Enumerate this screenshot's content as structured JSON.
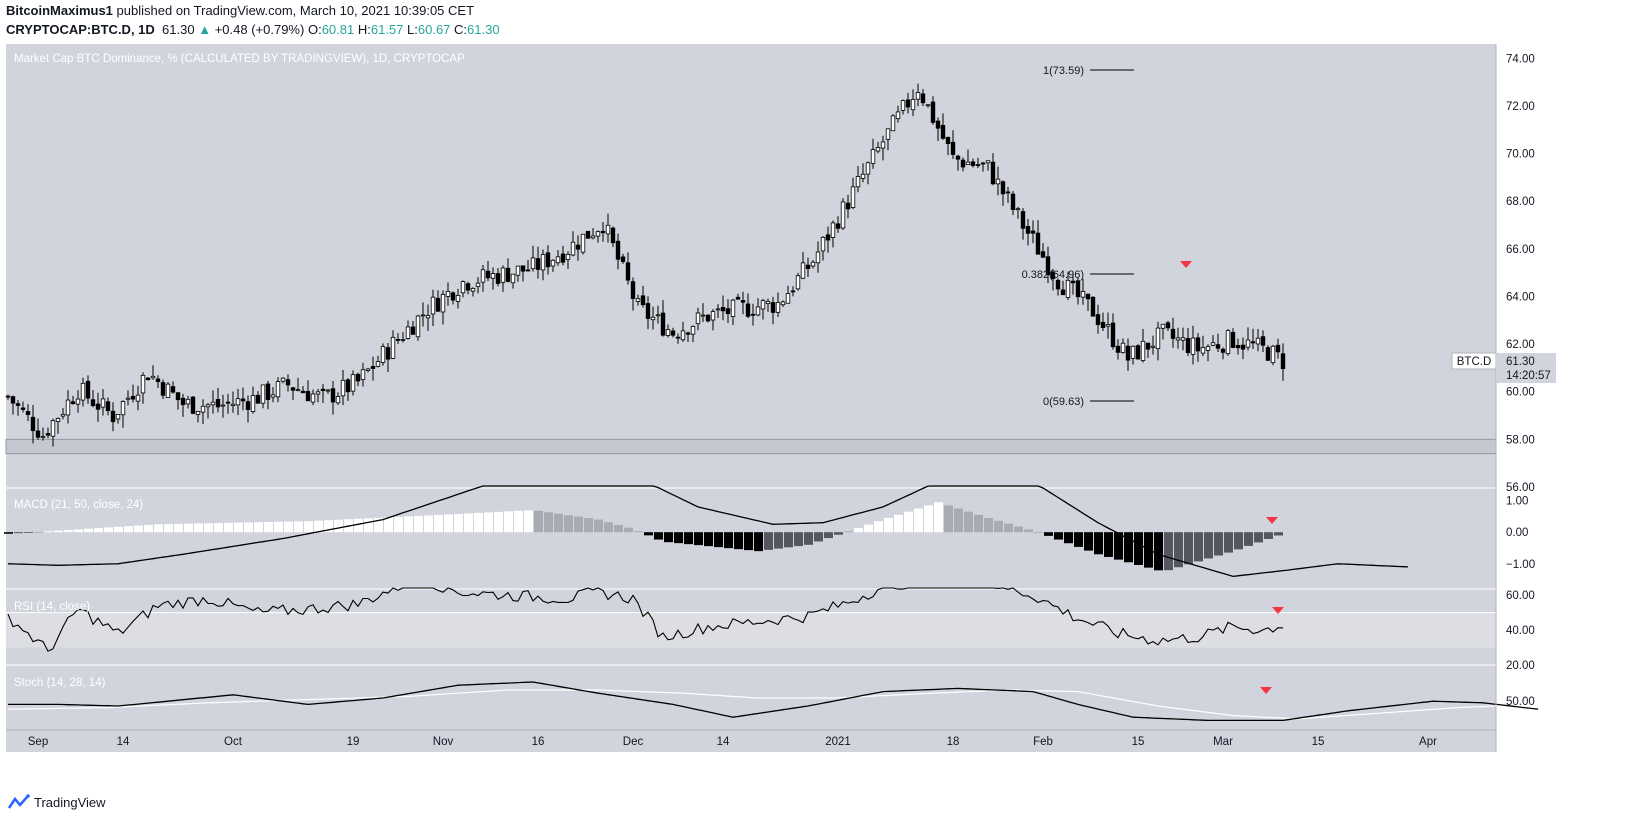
{
  "header": {
    "author": "BitcoinMaximus1",
    "published": "published on TradingView.com, March 10, 2021 10:39:05 CET",
    "symbol": "CRYPTOCAP:BTC.D, 1D",
    "last": "61.30",
    "change": "+0.48 (+0.79%)",
    "o_label": "O:",
    "o": "60.81",
    "h_label": "H:",
    "h": "61.57",
    "l_label": "L:",
    "l": "60.67",
    "c_label": "C:",
    "c": "61.30"
  },
  "chart_data": {
    "type": "candlestick",
    "title": "Market Cap BTC Dominance, % (CALCULATED BY TRADINGVIEW), 1D, CRYPTOCAP",
    "ylim": [
      56,
      74.6
    ],
    "y_ticks": [
      "74.00",
      "72.00",
      "70.00",
      "68.00",
      "66.00",
      "64.00",
      "62.00",
      "60.00",
      "58.00",
      "56.00"
    ],
    "x_tick_labels": [
      "Sep",
      "14",
      "Oct",
      "19",
      "Nov",
      "16",
      "Dec",
      "14",
      "2021",
      "18",
      "Feb",
      "15",
      "Mar",
      "15",
      "Apr"
    ],
    "candle_keypoints": [
      [
        0,
        59.8
      ],
      [
        7,
        58.2
      ],
      [
        14,
        60.1
      ],
      [
        21,
        59.0
      ],
      [
        28,
        60.8
      ],
      [
        35,
        59.5
      ],
      [
        42,
        59.4
      ],
      [
        49,
        59.7
      ],
      [
        56,
        60.3
      ],
      [
        63,
        59.7
      ],
      [
        70,
        60.4
      ],
      [
        77,
        62.0
      ],
      [
        84,
        63.5
      ],
      [
        91,
        64.6
      ],
      [
        98,
        64.9
      ],
      [
        105,
        65.2
      ],
      [
        112,
        66.0
      ],
      [
        119,
        67.1
      ],
      [
        126,
        63.5
      ],
      [
        133,
        62.5
      ],
      [
        140,
        63.2
      ],
      [
        147,
        63.5
      ],
      [
        154,
        63.7
      ],
      [
        161,
        65.5
      ],
      [
        168,
        68.0
      ],
      [
        175,
        70.5
      ],
      [
        182,
        72.8
      ],
      [
        189,
        69.8
      ],
      [
        196,
        69.4
      ],
      [
        203,
        67.0
      ],
      [
        210,
        64.7
      ],
      [
        217,
        63.4
      ],
      [
        224,
        61.4
      ],
      [
        231,
        62.4
      ],
      [
        238,
        61.8
      ],
      [
        245,
        62.2
      ],
      [
        252,
        61.7
      ],
      [
        255,
        61.3
      ]
    ],
    "support_zone": [
      57.4,
      58.0
    ],
    "fib_levels": [
      {
        "label": "1(73.59)",
        "value": 73.59
      },
      {
        "label": "0.382(64.96)",
        "value": 64.96
      },
      {
        "label": "0(59.63)",
        "value": 59.63
      }
    ],
    "price_label": {
      "symbol": "BTC.D",
      "price": "61.30",
      "countdown": "14:20:57"
    },
    "markers": [
      "down-arrow-red"
    ],
    "colors": {
      "up": "#ffffff",
      "down": "#000000",
      "marker": "#f23645",
      "bg": "#d1d4dc"
    }
  },
  "macd": {
    "label": "MACD (21, 50, close, 24)",
    "ylim": [
      -1.8,
      1.4
    ],
    "y_ticks": [
      "1.00",
      "0.00",
      "−1.00"
    ],
    "hist_keypoints": [
      [
        0,
        -0.05
      ],
      [
        30,
        0.25
      ],
      [
        60,
        0.35
      ],
      [
        80,
        0.5
      ],
      [
        105,
        0.7
      ],
      [
        118,
        0.4
      ],
      [
        125,
        0.1
      ],
      [
        131,
        -0.3
      ],
      [
        150,
        -0.6
      ],
      [
        160,
        -0.4
      ],
      [
        175,
        0.4
      ],
      [
        186,
        0.95
      ],
      [
        196,
        0.45
      ],
      [
        206,
        0.0
      ],
      [
        218,
        -0.7
      ],
      [
        231,
        -1.25
      ],
      [
        245,
        -0.6
      ],
      [
        255,
        -0.05
      ]
    ],
    "macd_keypoints": [
      [
        0,
        -1.0
      ],
      [
        10,
        -1.05
      ],
      [
        22,
        -1.0
      ],
      [
        35,
        -0.7
      ],
      [
        55,
        -0.2
      ],
      [
        75,
        0.4
      ],
      [
        90,
        1.2
      ],
      [
        105,
        2.0
      ],
      [
        125,
        1.8
      ],
      [
        138,
        0.8
      ],
      [
        153,
        0.25
      ],
      [
        163,
        0.3
      ],
      [
        175,
        0.8
      ],
      [
        190,
        1.9
      ],
      [
        205,
        1.6
      ],
      [
        218,
        0.3
      ],
      [
        230,
        -0.7
      ],
      [
        245,
        -1.4
      ],
      [
        256,
        -1.2
      ],
      [
        266,
        -1.0
      ],
      [
        280,
        -1.1
      ]
    ]
  },
  "rsi": {
    "label": "RSI (14, close)",
    "ylim": [
      20,
      63
    ],
    "y_ticks": [
      "60.00",
      "40.00",
      "20.00"
    ],
    "band": [
      30,
      50
    ],
    "rsi_keypoints": [
      [
        0,
        48
      ],
      [
        8,
        28
      ],
      [
        14,
        52
      ],
      [
        22,
        38
      ],
      [
        30,
        54
      ],
      [
        40,
        58
      ],
      [
        50,
        50
      ],
      [
        60,
        52
      ],
      [
        70,
        55
      ],
      [
        82,
        70
      ],
      [
        90,
        62
      ],
      [
        100,
        60
      ],
      [
        112,
        58
      ],
      [
        118,
        62
      ],
      [
        125,
        58
      ],
      [
        131,
        36
      ],
      [
        140,
        42
      ],
      [
        150,
        45
      ],
      [
        160,
        48
      ],
      [
        168,
        56
      ],
      [
        175,
        65
      ],
      [
        190,
        72
      ],
      [
        205,
        60
      ],
      [
        213,
        48
      ],
      [
        222,
        38
      ],
      [
        230,
        34
      ],
      [
        238,
        36
      ],
      [
        245,
        42
      ],
      [
        251,
        40
      ],
      [
        255,
        43
      ]
    ]
  },
  "stoch": {
    "label": "Stoch (14, 28, 14)",
    "ylim": [
      32,
      72
    ],
    "y_ticks": [
      "50.00"
    ],
    "k_keypoints": [
      [
        0,
        48
      ],
      [
        10,
        48
      ],
      [
        22,
        47
      ],
      [
        32,
        50
      ],
      [
        45,
        54
      ],
      [
        60,
        48
      ],
      [
        75,
        52
      ],
      [
        90,
        60
      ],
      [
        105,
        62
      ],
      [
        118,
        55
      ],
      [
        133,
        48
      ],
      [
        145,
        40
      ],
      [
        160,
        47
      ],
      [
        175,
        56
      ],
      [
        190,
        58
      ],
      [
        205,
        56
      ],
      [
        214,
        48
      ],
      [
        225,
        40
      ],
      [
        240,
        38
      ],
      [
        255,
        38
      ],
      [
        268,
        44
      ],
      [
        285,
        50
      ],
      [
        295,
        49
      ],
      [
        306,
        45
      ]
    ],
    "d_keypoints": [
      [
        0,
        45
      ],
      [
        20,
        46
      ],
      [
        40,
        49
      ],
      [
        60,
        51
      ],
      [
        80,
        53
      ],
      [
        100,
        57
      ],
      [
        118,
        57
      ],
      [
        135,
        55
      ],
      [
        150,
        52
      ],
      [
        165,
        52
      ],
      [
        185,
        55
      ],
      [
        200,
        57
      ],
      [
        214,
        56
      ],
      [
        230,
        47
      ],
      [
        245,
        41
      ],
      [
        258,
        39
      ],
      [
        272,
        42
      ],
      [
        290,
        46
      ],
      [
        306,
        48
      ]
    ]
  },
  "footer": {
    "brand": "TradingView"
  }
}
